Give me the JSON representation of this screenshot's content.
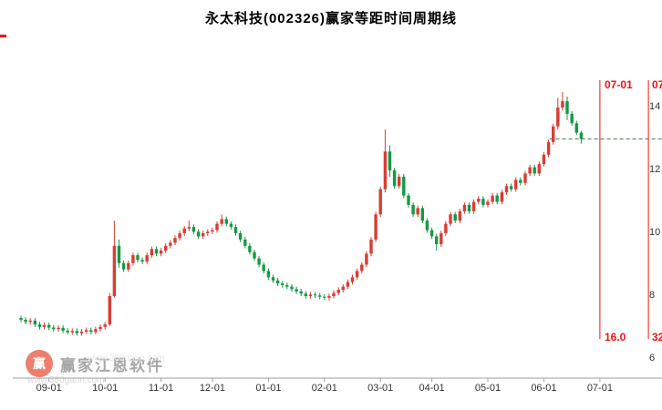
{
  "title": "永太科技(002326)赢家等距时间周期线",
  "watermark": {
    "brand": "赢家江恩软件",
    "url": "www.360gann.com",
    "logo_text": "赢"
  },
  "colors": {
    "up": "#dc3b32",
    "down": "#149a43",
    "cycle_line": "#f21212",
    "dashed_line": "#4f7d52",
    "axis_line": "#a0a0a0",
    "label": "#333333"
  },
  "chart_data": {
    "type": "candlestick",
    "title": "永太科技(002326)赢家等距时间周期线",
    "y_axis_labels": [
      14,
      12,
      10,
      8,
      6
    ],
    "ylim": [
      5.4,
      15.9
    ],
    "grid": false,
    "dashed_level": 13.0,
    "x_axis": {
      "labels": [
        "09-01",
        "10-01",
        "11-01",
        "12-01",
        "01-01",
        "02-01",
        "03-01",
        "04-01",
        "05-01",
        "06-01",
        "07-01"
      ],
      "indices": [
        6,
        18,
        30,
        41,
        53,
        65,
        77,
        88,
        100,
        112,
        124
      ]
    },
    "cycle_lines": [
      {
        "index": 124,
        "label_top": "07-01",
        "label_bottom": "16.0"
      },
      {
        "index": 134.4,
        "label_top": "07",
        "label_bottom": "32"
      }
    ],
    "candle_columns": [
      "open",
      "high",
      "low",
      "close"
    ],
    "candles": [
      [
        7.3,
        7.38,
        7.17,
        7.25
      ],
      [
        7.25,
        7.33,
        7.1,
        7.18
      ],
      [
        7.18,
        7.3,
        7.1,
        7.22
      ],
      [
        7.22,
        7.3,
        7.02,
        7.1
      ],
      [
        7.1,
        7.18,
        6.94,
        7.02
      ],
      [
        7.02,
        7.16,
        6.94,
        7.08
      ],
      [
        7.08,
        7.16,
        6.92,
        7.0
      ],
      [
        7.0,
        7.08,
        6.87,
        6.95
      ],
      [
        6.95,
        7.07,
        6.87,
        6.99
      ],
      [
        6.99,
        7.07,
        6.82,
        6.9
      ],
      [
        6.9,
        6.98,
        6.77,
        6.85
      ],
      [
        6.85,
        6.97,
        6.77,
        6.89
      ],
      [
        6.89,
        6.97,
        6.74,
        6.82
      ],
      [
        6.82,
        6.95,
        6.74,
        6.87
      ],
      [
        6.87,
        7.0,
        6.79,
        6.92
      ],
      [
        6.92,
        7.0,
        6.78,
        6.86
      ],
      [
        6.86,
        7.03,
        6.78,
        6.95
      ],
      [
        6.95,
        7.1,
        6.87,
        7.02
      ],
      [
        7.02,
        7.18,
        6.94,
        7.1
      ],
      [
        7.1,
        8.1,
        7.05,
        8.0
      ],
      [
        8.0,
        10.4,
        7.95,
        9.6
      ],
      [
        9.6,
        9.8,
        8.9,
        9.05
      ],
      [
        9.05,
        9.13,
        8.77,
        8.85
      ],
      [
        8.85,
        9.13,
        8.77,
        9.05
      ],
      [
        9.05,
        9.38,
        8.97,
        9.3
      ],
      [
        9.3,
        9.38,
        9.07,
        9.15
      ],
      [
        9.15,
        9.23,
        9.02,
        9.1
      ],
      [
        9.1,
        9.38,
        9.02,
        9.3
      ],
      [
        9.3,
        9.58,
        9.22,
        9.5
      ],
      [
        9.5,
        9.58,
        9.27,
        9.35
      ],
      [
        9.35,
        9.53,
        9.27,
        9.45
      ],
      [
        9.45,
        9.68,
        9.37,
        9.6
      ],
      [
        9.6,
        9.78,
        9.52,
        9.7
      ],
      [
        9.7,
        9.93,
        9.62,
        9.85
      ],
      [
        9.85,
        10.08,
        9.77,
        10.0
      ],
      [
        10.0,
        10.23,
        9.92,
        10.15
      ],
      [
        10.15,
        10.4,
        10.07,
        10.2
      ],
      [
        10.2,
        10.28,
        9.97,
        10.05
      ],
      [
        10.05,
        10.13,
        9.82,
        9.9
      ],
      [
        9.9,
        10.08,
        9.82,
        10.0
      ],
      [
        10.0,
        10.13,
        9.92,
        10.05
      ],
      [
        10.05,
        10.18,
        9.97,
        10.1
      ],
      [
        10.1,
        10.38,
        10.02,
        10.3
      ],
      [
        10.3,
        10.6,
        10.22,
        10.45
      ],
      [
        10.45,
        10.53,
        10.22,
        10.3
      ],
      [
        10.3,
        10.38,
        10.12,
        10.2
      ],
      [
        10.2,
        10.28,
        9.92,
        10.0
      ],
      [
        10.0,
        10.08,
        9.72,
        9.8
      ],
      [
        9.8,
        9.88,
        9.52,
        9.6
      ],
      [
        9.6,
        9.68,
        9.32,
        9.4
      ],
      [
        9.4,
        9.48,
        9.12,
        9.2
      ],
      [
        9.2,
        9.28,
        8.92,
        9.0
      ],
      [
        9.0,
        9.08,
        8.72,
        8.8
      ],
      [
        8.8,
        8.88,
        8.52,
        8.6
      ],
      [
        8.6,
        8.68,
        8.42,
        8.5
      ],
      [
        8.5,
        8.58,
        8.32,
        8.4
      ],
      [
        8.4,
        8.48,
        8.27,
        8.35
      ],
      [
        8.35,
        8.43,
        8.22,
        8.3
      ],
      [
        8.3,
        8.38,
        8.14,
        8.22
      ],
      [
        8.22,
        8.3,
        8.07,
        8.15
      ],
      [
        8.15,
        8.23,
        8.0,
        8.08
      ],
      [
        8.08,
        8.16,
        7.92,
        8.0
      ],
      [
        8.0,
        8.13,
        7.92,
        8.05
      ],
      [
        8.05,
        8.13,
        7.94,
        8.02
      ],
      [
        8.02,
        8.1,
        7.9,
        7.98
      ],
      [
        7.98,
        8.06,
        7.87,
        7.95
      ],
      [
        7.95,
        8.08,
        7.87,
        8.0
      ],
      [
        8.0,
        8.18,
        7.92,
        8.1
      ],
      [
        8.1,
        8.28,
        8.02,
        8.2
      ],
      [
        8.2,
        8.38,
        8.12,
        8.3
      ],
      [
        8.3,
        8.53,
        8.22,
        8.45
      ],
      [
        8.45,
        8.68,
        8.37,
        8.6
      ],
      [
        8.6,
        8.88,
        8.52,
        8.8
      ],
      [
        8.8,
        9.08,
        8.72,
        9.0
      ],
      [
        9.0,
        9.43,
        8.92,
        9.35
      ],
      [
        9.35,
        9.88,
        9.27,
        9.8
      ],
      [
        9.8,
        10.68,
        9.72,
        10.6
      ],
      [
        10.6,
        11.48,
        10.52,
        11.4
      ],
      [
        11.4,
        13.3,
        11.3,
        12.6
      ],
      [
        12.6,
        12.8,
        11.8,
        12.0
      ],
      [
        12.0,
        12.08,
        11.42,
        11.5
      ],
      [
        11.5,
        11.88,
        11.42,
        11.8
      ],
      [
        11.8,
        11.88,
        11.12,
        11.2
      ],
      [
        11.2,
        11.28,
        10.82,
        10.9
      ],
      [
        10.9,
        10.98,
        10.52,
        10.6
      ],
      [
        10.6,
        10.88,
        10.52,
        10.8
      ],
      [
        10.8,
        10.88,
        10.32,
        10.4
      ],
      [
        10.4,
        10.48,
        10.02,
        10.1
      ],
      [
        10.1,
        10.18,
        9.82,
        9.9
      ],
      [
        9.9,
        9.98,
        9.45,
        9.65
      ],
      [
        9.65,
        10.08,
        9.57,
        10.0
      ],
      [
        10.0,
        10.38,
        9.92,
        10.3
      ],
      [
        10.3,
        10.68,
        10.22,
        10.6
      ],
      [
        10.6,
        10.68,
        10.32,
        10.4
      ],
      [
        10.4,
        10.78,
        10.32,
        10.7
      ],
      [
        10.7,
        10.98,
        10.62,
        10.9
      ],
      [
        10.9,
        10.98,
        10.62,
        10.7
      ],
      [
        10.7,
        11.08,
        10.62,
        11.0
      ],
      [
        11.0,
        11.18,
        10.92,
        11.1
      ],
      [
        11.1,
        11.18,
        10.82,
        10.9
      ],
      [
        10.9,
        11.08,
        10.82,
        11.0
      ],
      [
        11.0,
        11.28,
        10.92,
        11.2
      ],
      [
        11.2,
        11.28,
        10.92,
        11.0
      ],
      [
        11.0,
        11.38,
        10.92,
        11.3
      ],
      [
        11.3,
        11.58,
        11.22,
        11.5
      ],
      [
        11.5,
        11.58,
        11.32,
        11.4
      ],
      [
        11.4,
        11.78,
        11.32,
        11.7
      ],
      [
        11.7,
        11.78,
        11.52,
        11.6
      ],
      [
        11.6,
        11.98,
        11.52,
        11.9
      ],
      [
        11.9,
        12.18,
        11.82,
        12.1
      ],
      [
        12.1,
        12.18,
        11.82,
        11.9
      ],
      [
        11.9,
        12.28,
        11.82,
        12.2
      ],
      [
        12.2,
        12.58,
        12.12,
        12.5
      ],
      [
        12.5,
        12.98,
        12.42,
        12.9
      ],
      [
        12.9,
        13.48,
        12.82,
        13.4
      ],
      [
        13.4,
        14.3,
        13.3,
        14.0
      ],
      [
        14.0,
        14.5,
        13.9,
        14.2
      ],
      [
        14.2,
        14.35,
        13.6,
        13.8
      ],
      [
        13.8,
        13.88,
        13.42,
        13.5
      ],
      [
        13.5,
        13.58,
        13.12,
        13.2
      ],
      [
        13.2,
        13.25,
        12.85,
        13.0
      ]
    ]
  }
}
